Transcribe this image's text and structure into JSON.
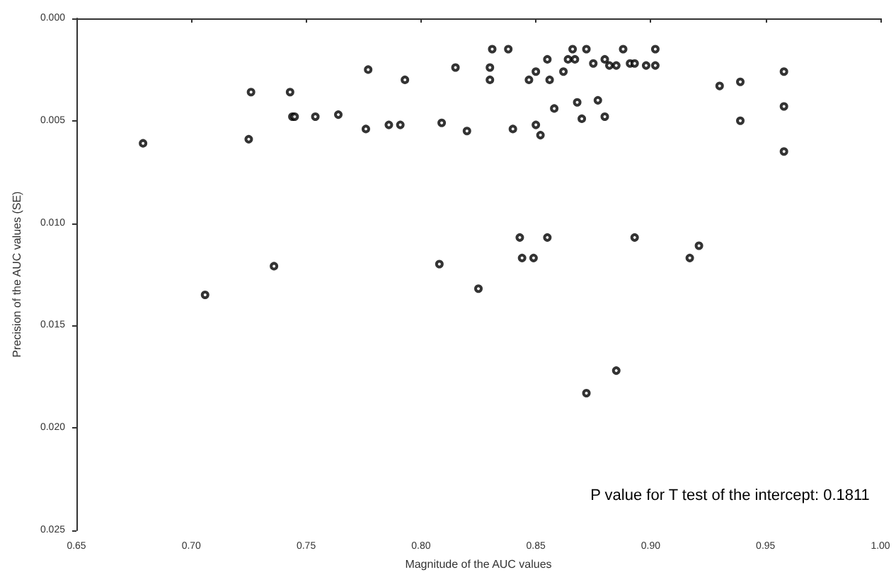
{
  "chart_data": {
    "type": "scatter",
    "xlabel": "Magnitude of the AUC values",
    "ylabel": "Precision of the AUC values (SE)",
    "annotations": [
      "P value for T test of the intercept: 0.1811"
    ],
    "xlim": [
      0.65,
      1.0
    ],
    "xticks": [
      0.65,
      {
        "value": 0.7,
        "label": "0.70"
      },
      0.75,
      {
        "value": 0.8,
        "label": "0.80"
      },
      0.85,
      {
        "value": 0.9,
        "label": "0.90"
      },
      0.95,
      {
        "value": 1.0,
        "label": "1.00"
      }
    ],
    "ylim": [
      0.025,
      0.0
    ],
    "yticks": [
      {
        "value": 0,
        "label": "0.000"
      },
      0.005,
      {
        "value": 0.01,
        "label": "0.010"
      },
      0.015,
      {
        "value": 0.02,
        "label": "0.020"
      },
      0.025
    ],
    "grid": false,
    "marker": "circle",
    "color": "#000000",
    "x": [
      0.679,
      0.706,
      0.736,
      0.726,
      0.725,
      0.743,
      0.744,
      0.745,
      0.754,
      0.764,
      0.777,
      0.776,
      0.786,
      0.791,
      0.793,
      0.809,
      0.808,
      0.815,
      0.82,
      0.825,
      0.831,
      0.838,
      0.83,
      0.83,
      0.84,
      0.847,
      0.85,
      0.85,
      0.852,
      0.855,
      0.856,
      0.858,
      0.862,
      0.864,
      0.867,
      0.866,
      0.868,
      0.87,
      0.872,
      0.875,
      0.877,
      0.88,
      0.88,
      0.882,
      0.885,
      0.888,
      0.891,
      0.893,
      0.898,
      0.902,
      0.902,
      0.93,
      0.939,
      0.939,
      0.958,
      0.958,
      0.958,
      0.843,
      0.855,
      0.893,
      0.921,
      0.844,
      0.849,
      0.917,
      0.885,
      0.872
    ],
    "values": [
      0.0061,
      0.0135,
      0.0121,
      0.0036,
      0.0059,
      0.0036,
      0.0048,
      0.0048,
      0.0048,
      0.0047,
      0.0025,
      0.0054,
      0.0052,
      0.0052,
      0.003,
      0.0051,
      0.012,
      0.0024,
      0.0055,
      0.0132,
      0.0015,
      0.0015,
      0.0024,
      0.003,
      0.0054,
      0.003,
      0.0026,
      0.0052,
      0.0057,
      0.002,
      0.003,
      0.0044,
      0.0026,
      0.002,
      0.002,
      0.0015,
      0.0041,
      0.0049,
      0.0015,
      0.0022,
      0.004,
      0.002,
      0.0048,
      0.0023,
      0.0023,
      0.0015,
      0.0022,
      0.0022,
      0.0023,
      0.0015,
      0.0023,
      0.0033,
      0.0031,
      0.005,
      0.0026,
      0.0043,
      0.0065,
      0.0107,
      0.0107,
      0.0107,
      0.0111,
      0.0117,
      0.0117,
      0.0117,
      0.0172,
      0.0183
    ]
  }
}
